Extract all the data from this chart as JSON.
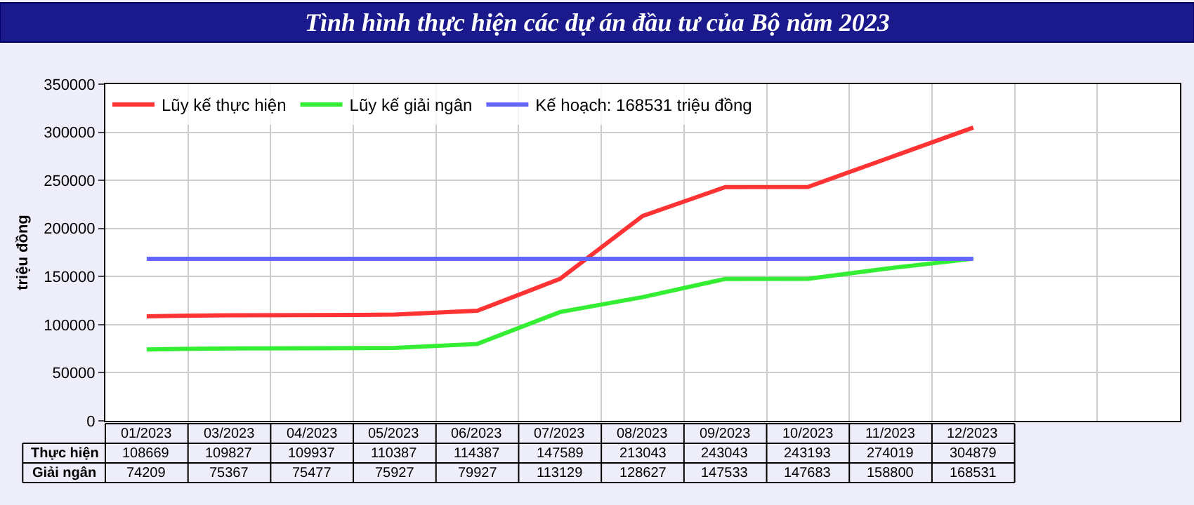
{
  "chart_data": {
    "type": "line",
    "title": "Tình hình thực hiện các dự án đầu tư của Bộ năm 2023",
    "ylabel": "triệu đồng",
    "categories": [
      "01/2023",
      "03/2023",
      "04/2023",
      "05/2023",
      "06/2023",
      "07/2023",
      "08/2023",
      "09/2023",
      "10/2023",
      "11/2023",
      "12/2023"
    ],
    "series": [
      {
        "name": "Lũy kế thực hiện",
        "color": "#ff3333",
        "values": [
          108669,
          109827,
          109937,
          110387,
          114387,
          147589,
          213043,
          243043,
          243193,
          274019,
          304879
        ],
        "value_labels": [
          "108669",
          "109827",
          "109937",
          "110387",
          "114387",
          "147589",
          "213043",
          "243043",
          "243193",
          "274019",
          "304879"
        ]
      },
      {
        "name": "Lũy kế giải ngân",
        "color": "#33ee33",
        "values": [
          74209,
          75367,
          75477,
          75927,
          79927,
          113129,
          128627,
          147533,
          147683,
          158800,
          168531
        ],
        "value_labels": [
          "74209",
          "75367",
          "75477",
          "75927",
          "79927",
          "113129",
          "128627",
          "147533",
          "147683",
          "158800",
          "168531"
        ]
      },
      {
        "name": "Kế hoạch: 168531 triệu đồng",
        "color": "#6666ff",
        "values": [
          168531,
          168531,
          168531,
          168531,
          168531,
          168531,
          168531,
          168531,
          168531,
          168531,
          168531
        ]
      }
    ],
    "annotations": [
      "Thực hiện",
      "Giải ngân"
    ],
    "ylim": [
      0,
      350000
    ],
    "yticks": [
      0,
      50000,
      100000,
      150000,
      200000,
      250000,
      300000,
      350000
    ],
    "grid": true,
    "legend": "top left",
    "marker": "none",
    "line_style": "solid"
  }
}
